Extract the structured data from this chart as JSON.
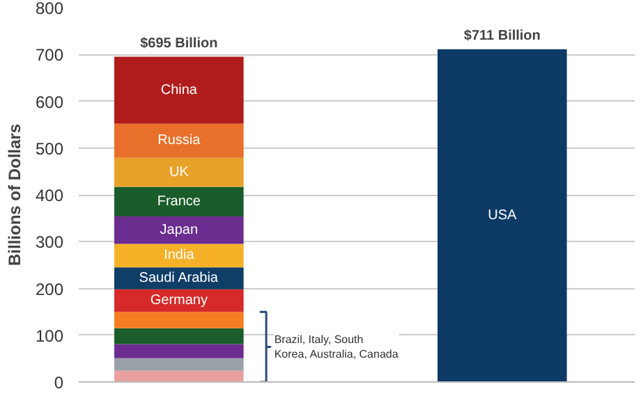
{
  "chart_data": {
    "type": "bar",
    "stacked": true,
    "categories": [
      null,
      null
    ],
    "ylabel": "Billions of Dollars",
    "ylim": [
      0,
      800
    ],
    "yticks": [
      0,
      100,
      200,
      300,
      400,
      500,
      600,
      700,
      800
    ],
    "grid": "y",
    "series": [
      {
        "color": "#e8a0a0",
        "values": [
          24,
          null
        ]
      },
      {
        "color": "#9aa0a8",
        "values": [
          27,
          null
        ]
      },
      {
        "color": "#6b2d8f",
        "values": [
          30,
          null
        ]
      },
      {
        "color": "#1a5c2a",
        "values": [
          34,
          null
        ]
      },
      {
        "color": "#f57c20",
        "values": [
          35,
          null
        ]
      },
      {
        "name": "Germany",
        "color": "#d62a2a",
        "values": [
          48,
          null
        ]
      },
      {
        "name": "Saudi Arabia",
        "color": "#0f3e66",
        "values": [
          47,
          null
        ]
      },
      {
        "name": "India",
        "color": "#f6b129",
        "values": [
          50,
          null
        ]
      },
      {
        "name": "Japan",
        "color": "#6b2d8f",
        "values": [
          59,
          null
        ]
      },
      {
        "name": "France",
        "color": "#1a5c2a",
        "values": [
          63,
          null
        ]
      },
      {
        "name": "UK",
        "color": "#e8a22a",
        "values": [
          62,
          null
        ]
      },
      {
        "name": "Russia",
        "color": "#e8702a",
        "values": [
          73,
          null
        ]
      },
      {
        "name": "China",
        "color": "#b01c1c",
        "values": [
          143,
          null
        ]
      },
      {
        "name": "USA",
        "color": "#0d3a66",
        "values": [
          null,
          711
        ]
      }
    ],
    "totals": [
      "$695 Billion",
      "$711 Billion"
    ],
    "annotations": [
      "Brazil, Italy, South Korea, Australia, Canada"
    ]
  }
}
